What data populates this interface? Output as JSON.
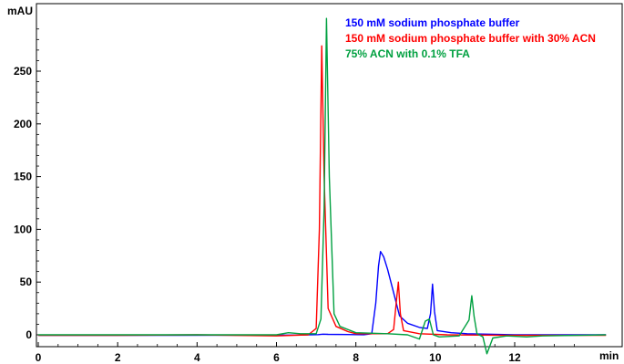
{
  "chart_data": {
    "type": "line",
    "title": "",
    "ylabel": "mAU",
    "xlabel": "min",
    "xlim": [
      0,
      14.3
    ],
    "ylim": [
      -6,
      305
    ],
    "x_ticks": [
      0,
      2,
      4,
      6,
      8,
      10,
      12
    ],
    "x_tick_labels": [
      "0",
      "2",
      "4",
      "6",
      "8",
      "10",
      "12"
    ],
    "y_ticks": [
      0,
      50,
      100,
      150,
      200,
      250
    ],
    "y_tick_labels": [
      "0",
      "50",
      "100",
      "150",
      "200",
      "250"
    ],
    "grid": false,
    "legend_position": "top-right",
    "series": [
      {
        "name": "150 mM sodium phosphate buffer",
        "color": "#0000ff",
        "points": [
          [
            0,
            -0.5
          ],
          [
            3.5,
            -0.5
          ],
          [
            6.5,
            -0.3
          ],
          [
            7.05,
            0.2
          ],
          [
            7.17,
            0.6
          ],
          [
            7.3,
            0.4
          ],
          [
            8.2,
            0.1
          ],
          [
            8.4,
            1
          ],
          [
            8.5,
            30
          ],
          [
            8.57,
            65
          ],
          [
            8.62,
            79
          ],
          [
            8.7,
            74
          ],
          [
            8.8,
            62
          ],
          [
            8.95,
            40
          ],
          [
            9.1,
            18
          ],
          [
            9.3,
            11
          ],
          [
            9.6,
            7
          ],
          [
            9.8,
            6
          ],
          [
            9.88,
            20
          ],
          [
            9.93,
            48
          ],
          [
            9.98,
            22
          ],
          [
            10.05,
            4
          ],
          [
            10.4,
            2
          ],
          [
            10.8,
            1
          ],
          [
            12,
            0
          ],
          [
            14.3,
            0
          ]
        ]
      },
      {
        "name": "150 mM sodium phosphate buffer with 30% ACN",
        "color": "#ff0000",
        "points": [
          [
            0,
            -0.5
          ],
          [
            2,
            -0.5
          ],
          [
            4,
            0
          ],
          [
            6,
            -1
          ],
          [
            6.8,
            0
          ],
          [
            7.0,
            6
          ],
          [
            7.08,
            100
          ],
          [
            7.14,
            274
          ],
          [
            7.2,
            150
          ],
          [
            7.3,
            25
          ],
          [
            7.5,
            8
          ],
          [
            7.8,
            3
          ],
          [
            8.0,
            1
          ],
          [
            8.8,
            1
          ],
          [
            8.95,
            5
          ],
          [
            9.03,
            36
          ],
          [
            9.07,
            50
          ],
          [
            9.12,
            20
          ],
          [
            9.2,
            4
          ],
          [
            9.6,
            1
          ],
          [
            10.3,
            0
          ],
          [
            12,
            -0.5
          ],
          [
            14.3,
            -0.5
          ]
        ]
      },
      {
        "name": "75% ACN with 0.1% TFA",
        "color": "#00a040",
        "points": [
          [
            0,
            0
          ],
          [
            4,
            0
          ],
          [
            6.0,
            0
          ],
          [
            6.3,
            2
          ],
          [
            6.6,
            1
          ],
          [
            7.0,
            1
          ],
          [
            7.12,
            15
          ],
          [
            7.2,
            120
          ],
          [
            7.26,
            300
          ],
          [
            7.33,
            150
          ],
          [
            7.45,
            20
          ],
          [
            7.6,
            8
          ],
          [
            8.0,
            2
          ],
          [
            8.8,
            1
          ],
          [
            9.3,
            0
          ],
          [
            9.6,
            -4
          ],
          [
            9.75,
            13
          ],
          [
            9.85,
            15
          ],
          [
            9.95,
            0
          ],
          [
            10.1,
            -2
          ],
          [
            10.6,
            -1
          ],
          [
            10.85,
            14
          ],
          [
            10.92,
            37
          ],
          [
            10.98,
            17
          ],
          [
            11.05,
            1
          ],
          [
            11.2,
            -2
          ],
          [
            11.3,
            -18
          ],
          [
            11.45,
            -3
          ],
          [
            11.8,
            -1
          ],
          [
            12.3,
            -2
          ],
          [
            12.7,
            -1
          ],
          [
            14.3,
            0
          ]
        ]
      }
    ]
  }
}
